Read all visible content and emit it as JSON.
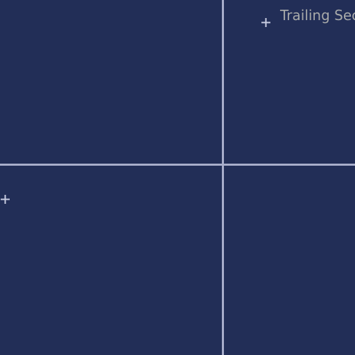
{
  "canvas": {
    "background": "#222e57",
    "guide_color": "#a8aecb",
    "label_color": "#a7a9a9",
    "marker_icon": "plus-crosshair-icon"
  },
  "labels": {
    "top_right": "Trailing Sec"
  }
}
